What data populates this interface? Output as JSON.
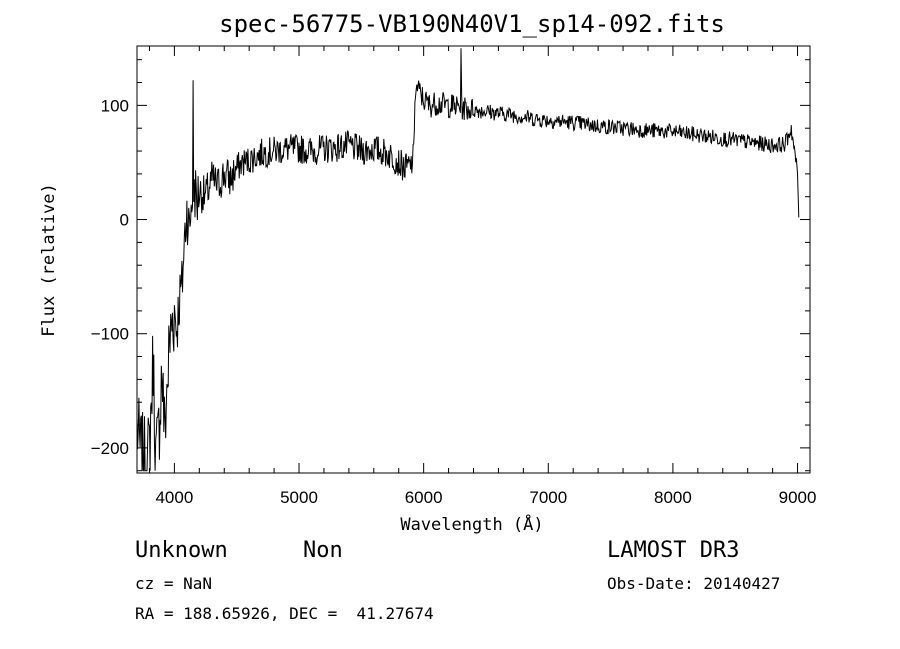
{
  "chart_data": {
    "type": "line",
    "title": "spec-56775-VB190N40V1_sp14-092.fits",
    "xlabel": "Wavelength (Å)",
    "ylabel": "Flux (relative)",
    "xlim": [
      3700,
      9100
    ],
    "ylim": [
      -222,
      152
    ],
    "xticks": [
      4000,
      5000,
      6000,
      7000,
      8000,
      9000
    ],
    "yticks": [
      -200,
      -100,
      0,
      100
    ],
    "xtick_labels": [
      "4000",
      "5000",
      "6000",
      "7000",
      "8000",
      "9000"
    ],
    "ytick_labels": [
      "−200",
      "−100",
      "0",
      "100"
    ],
    "grid": false,
    "series": [
      {
        "x": [
          3700,
          3720,
          3750,
          3780,
          3800,
          3830,
          3850,
          3870,
          3900,
          3920,
          3940,
          3960,
          3980,
          4000,
          4020,
          4040,
          4060,
          4080,
          4100,
          4120,
          4140,
          4150,
          4160,
          4180,
          4200,
          4250,
          4300,
          4350,
          4400,
          4450,
          4500,
          4550,
          4600,
          4650,
          4700,
          4800,
          4900,
          5000,
          5100,
          5200,
          5300,
          5400,
          5500,
          5600,
          5700,
          5750,
          5800,
          5850,
          5900,
          5920,
          5930,
          5950,
          6000,
          6050,
          6100,
          6200,
          6300,
          6400,
          6500,
          6600,
          6700,
          6800,
          6900,
          7000,
          7200,
          7400,
          7600,
          7800,
          8000,
          8200,
          8400,
          8600,
          8800,
          8900,
          8950,
          9000,
          9010
        ],
        "y": [
          -180,
          -200,
          -210,
          -215,
          -200,
          -120,
          -210,
          -195,
          -130,
          -185,
          -150,
          -110,
          -90,
          -80,
          -95,
          -70,
          -60,
          -20,
          10,
          -10,
          20,
          25,
          30,
          15,
          25,
          20,
          35,
          30,
          40,
          35,
          45,
          50,
          52,
          55,
          58,
          60,
          62,
          62,
          60,
          62,
          63,
          65,
          60,
          62,
          58,
          55,
          50,
          45,
          48,
          55,
          110,
          115,
          105,
          100,
          102,
          100,
          98,
          96,
          95,
          93,
          92,
          90,
          88,
          87,
          85,
          82,
          80,
          78,
          77,
          74,
          71,
          68,
          65,
          66,
          80,
          40,
          2
        ]
      }
    ]
  },
  "info": {
    "object_class": "Unknown",
    "object_subclass": "Non",
    "cz": "cz = NaN",
    "coords": "RA = 188.65926, DEC =  41.27674",
    "survey": "LAMOST DR3",
    "obs_date": "Obs-Date: 20140427"
  }
}
